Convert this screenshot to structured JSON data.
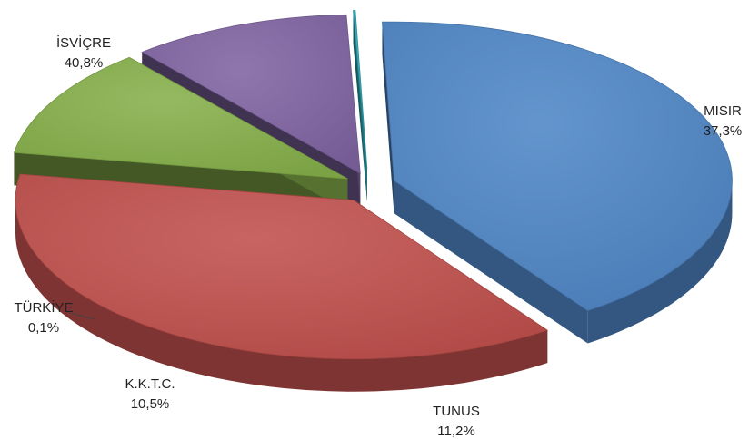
{
  "chart_data": {
    "type": "pie",
    "style": "3d-exploded",
    "legend": "none",
    "slices": [
      {
        "name": "İSVİÇRE",
        "value": 40.8,
        "value_label": "40,8%",
        "color": "#4F86C6"
      },
      {
        "name": "MISIR",
        "value": 37.3,
        "value_label": "37,3%",
        "color": "#C0504D"
      },
      {
        "name": "TUNUS",
        "value": 11.2,
        "value_label": "11,2%",
        "color": "#86B04A"
      },
      {
        "name": "K.K.T.C.",
        "value": 10.5,
        "value_label": "10,5%",
        "color": "#8064A2"
      },
      {
        "name": "TÜRKİYE",
        "value": 0.1,
        "value_label": "0,1%",
        "color": "#2FA8B6"
      }
    ]
  }
}
